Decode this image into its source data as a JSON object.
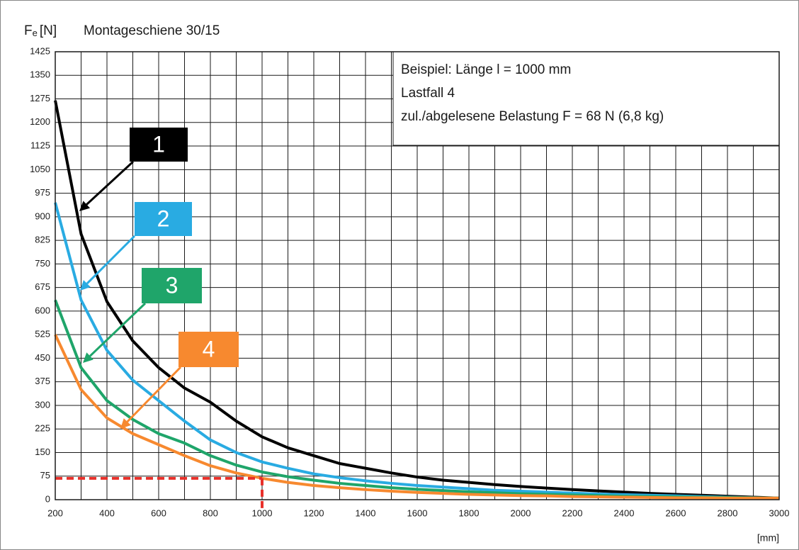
{
  "chart_data": {
    "type": "line",
    "title": "Montageschiene 30/15",
    "y_label": {
      "symbol": "F",
      "subscript": "e",
      "unit": "[N]"
    },
    "x_label": "[mm]",
    "annotation": [
      "Beispiel: Länge l = 1000 mm",
      "Lastfall 4",
      "zul./abgelesene Belastung F = 68 N (6,8 kg)"
    ],
    "x": [
      200,
      300,
      400,
      500,
      600,
      700,
      800,
      900,
      1000,
      1100,
      1200,
      1300,
      1400,
      1500,
      1600,
      1700,
      1800,
      1900,
      2000,
      2100,
      2200,
      2300,
      2400,
      2500,
      2600,
      2700,
      2800,
      2900,
      3000
    ],
    "series": [
      {
        "name": "1",
        "color": "#000000",
        "values": [
          1270,
          845,
          630,
          505,
          420,
          355,
          310,
          250,
          200,
          165,
          140,
          115,
          100,
          85,
          72,
          62,
          55,
          48,
          42,
          37,
          32,
          28,
          24,
          20,
          17,
          14,
          11,
          8,
          5
        ]
      },
      {
        "name": "2",
        "color": "#29abe2",
        "values": [
          945,
          635,
          475,
          380,
          315,
          250,
          190,
          150,
          120,
          100,
          82,
          70,
          60,
          52,
          45,
          40,
          35,
          30,
          27,
          24,
          21,
          18,
          16,
          14,
          12,
          10,
          8,
          6,
          5
        ]
      },
      {
        "name": "3",
        "color": "#1fa56a",
        "values": [
          635,
          420,
          315,
          255,
          210,
          180,
          140,
          110,
          88,
          73,
          62,
          52,
          45,
          38,
          33,
          29,
          25,
          22,
          19,
          17,
          15,
          13,
          11,
          10,
          9,
          8,
          7,
          6,
          5
        ]
      },
      {
        "name": "4",
        "color": "#f7892f",
        "values": [
          525,
          350,
          260,
          210,
          175,
          140,
          108,
          85,
          68,
          55,
          45,
          38,
          32,
          27,
          23,
          20,
          17,
          15,
          13,
          12,
          10,
          9,
          8,
          7,
          6,
          6,
          5,
          5,
          5
        ]
      }
    ],
    "reference": {
      "x": 1000,
      "y": 68,
      "color": "#e8302a"
    },
    "xlim": [
      200,
      3000
    ],
    "xticks": [
      200,
      400,
      600,
      800,
      1000,
      1200,
      1400,
      1600,
      1800,
      2000,
      2200,
      2400,
      2600,
      2800,
      3000
    ],
    "xminor": [
      300,
      500,
      700,
      900,
      1100,
      1300,
      1500,
      1700,
      1900,
      2100,
      2300,
      2500,
      2700,
      2900
    ],
    "ylim": [
      0,
      1425
    ],
    "yticks": [
      0,
      75,
      150,
      225,
      300,
      375,
      450,
      525,
      600,
      675,
      750,
      825,
      900,
      975,
      1050,
      1125,
      1200,
      1275,
      1350,
      1425
    ],
    "grid": true
  }
}
